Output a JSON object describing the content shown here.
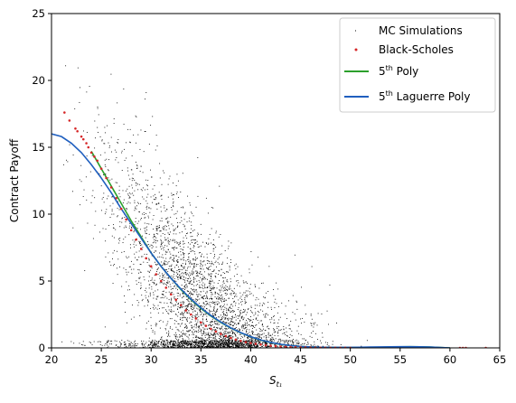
{
  "chart_data": {
    "type": "scatter",
    "xlabel": "S",
    "xlabel_sub": "t₁",
    "ylabel": "Contract Payoff",
    "xlim": [
      20,
      65
    ],
    "ylim": [
      0,
      25
    ],
    "xticks": [
      20,
      25,
      30,
      35,
      40,
      45,
      50,
      55,
      60,
      65
    ],
    "yticks": [
      0,
      5,
      10,
      15,
      20,
      25
    ],
    "grid": false,
    "legend_position": "top-right",
    "legend": [
      {
        "label": "MC Simulations",
        "label_sup": "",
        "label_rest": "",
        "color": "#000000",
        "marker": "pixel"
      },
      {
        "label": "Black-Scholes",
        "label_sup": "",
        "label_rest": "",
        "color": "#d62728",
        "marker": "dot"
      },
      {
        "label": "5",
        "label_sup": "th",
        "label_rest": " Poly",
        "color": "#2ca02c",
        "marker": "line"
      },
      {
        "label": "5",
        "label_sup": "th",
        "label_rest": " Laguerre Poly",
        "color": "#1f5fbf",
        "marker": "line"
      }
    ],
    "series": [
      {
        "name": "MC Simulations",
        "kind": "scatter",
        "color": "#000000",
        "distribution": {
          "count": 4200,
          "x_center": 35,
          "x_spread": 4.6,
          "x_min": 21,
          "x_max": 60,
          "y_noise": 3.6,
          "y_max": 23
        }
      },
      {
        "name": "Black-Scholes",
        "kind": "scatter",
        "color": "#d62728",
        "x": [
          21.3,
          21.8,
          22.4,
          22.6,
          23.0,
          23.2,
          23.5,
          23.7,
          24.0,
          24.3,
          24.6,
          25.0,
          25.5,
          26.0,
          26.5,
          27.0,
          27.5,
          28.0,
          28.5,
          29.0,
          29.5,
          30.0,
          30.5,
          31.0,
          31.5,
          32.0,
          32.5,
          33.0,
          33.5,
          34.0,
          34.5,
          35.0,
          35.5,
          36.0,
          36.5,
          37.0,
          37.5,
          38.0,
          38.5,
          39.0,
          39.5,
          40.0,
          40.5,
          41.0,
          41.5,
          42.0,
          42.5,
          43.0,
          43.5,
          44.0,
          44.5,
          45.0,
          45.5,
          46.0,
          46.5,
          47.0,
          47.5,
          48.0,
          48.5,
          49.0,
          49.5,
          50.0,
          61.0,
          61.3,
          61.6,
          63.6
        ],
        "y": [
          17.6,
          17.0,
          16.4,
          16.2,
          15.8,
          15.6,
          15.3,
          15.0,
          14.6,
          14.3,
          14.0,
          13.4,
          12.7,
          12.0,
          11.2,
          10.4,
          9.6,
          8.8,
          8.1,
          7.4,
          6.7,
          6.1,
          5.5,
          5.0,
          4.5,
          4.0,
          3.6,
          3.2,
          2.8,
          2.5,
          2.2,
          1.9,
          1.65,
          1.42,
          1.22,
          1.04,
          0.88,
          0.74,
          0.62,
          0.52,
          0.43,
          0.36,
          0.3,
          0.25,
          0.2,
          0.16,
          0.13,
          0.1,
          0.08,
          0.06,
          0.05,
          0.04,
          0.03,
          0.02,
          0.015,
          0.01,
          0.008,
          0.006,
          0.004,
          0.003,
          0.002,
          0.001,
          0.0,
          0.0,
          0.0,
          0.0
        ]
      },
      {
        "name": "5th Poly",
        "kind": "line",
        "color": "#2ca02c",
        "x": [
          24.0,
          25.0,
          26.0,
          27.0,
          28.0,
          29.0,
          30.0,
          31.0,
          32.0,
          33.0,
          34.0,
          35.0,
          36.0,
          37.0,
          38.0,
          39.0,
          40.0,
          41.0,
          42.0,
          43.0,
          44.0,
          45.0,
          46.0,
          47.0,
          48.0,
          49.0,
          50.0,
          51.0,
          52.0,
          53.0,
          54.0,
          55.0,
          56.0,
          57.0,
          58.0,
          59.0,
          60.0
        ],
        "y": [
          14.7,
          13.4,
          12.1,
          10.8,
          9.5,
          8.3,
          7.1,
          6.1,
          5.2,
          4.35,
          3.6,
          2.95,
          2.38,
          1.9,
          1.48,
          1.12,
          0.83,
          0.58,
          0.4,
          0.26,
          0.17,
          0.11,
          0.07,
          0.05,
          0.04,
          0.03,
          0.03,
          0.03,
          0.04,
          0.05,
          0.06,
          0.08,
          0.09,
          0.08,
          0.06,
          0.03,
          0.0
        ]
      },
      {
        "name": "5th Laguerre Poly",
        "kind": "line",
        "color": "#1f5fbf",
        "x": [
          20.0,
          21.0,
          22.0,
          23.0,
          24.0,
          25.0,
          26.0,
          27.0,
          28.0,
          29.0,
          30.0,
          31.0,
          32.0,
          33.0,
          34.0,
          35.0,
          36.0,
          37.0,
          38.0,
          39.0,
          40.0,
          41.0,
          42.0,
          43.0,
          44.0,
          45.0,
          46.0,
          47.0,
          48.0,
          49.0,
          50.0,
          51.0,
          52.0,
          53.0,
          54.0,
          55.0,
          56.0,
          57.0,
          58.0,
          59.0,
          60.0
        ],
        "y": [
          16.0,
          15.8,
          15.3,
          14.6,
          13.7,
          12.7,
          11.6,
          10.4,
          9.3,
          8.2,
          7.1,
          6.1,
          5.2,
          4.4,
          3.65,
          3.0,
          2.42,
          1.93,
          1.5,
          1.14,
          0.84,
          0.59,
          0.41,
          0.27,
          0.17,
          0.11,
          0.07,
          0.05,
          0.04,
          0.04,
          0.04,
          0.05,
          0.06,
          0.07,
          0.08,
          0.09,
          0.09,
          0.08,
          0.06,
          0.03,
          0.0
        ]
      }
    ]
  }
}
